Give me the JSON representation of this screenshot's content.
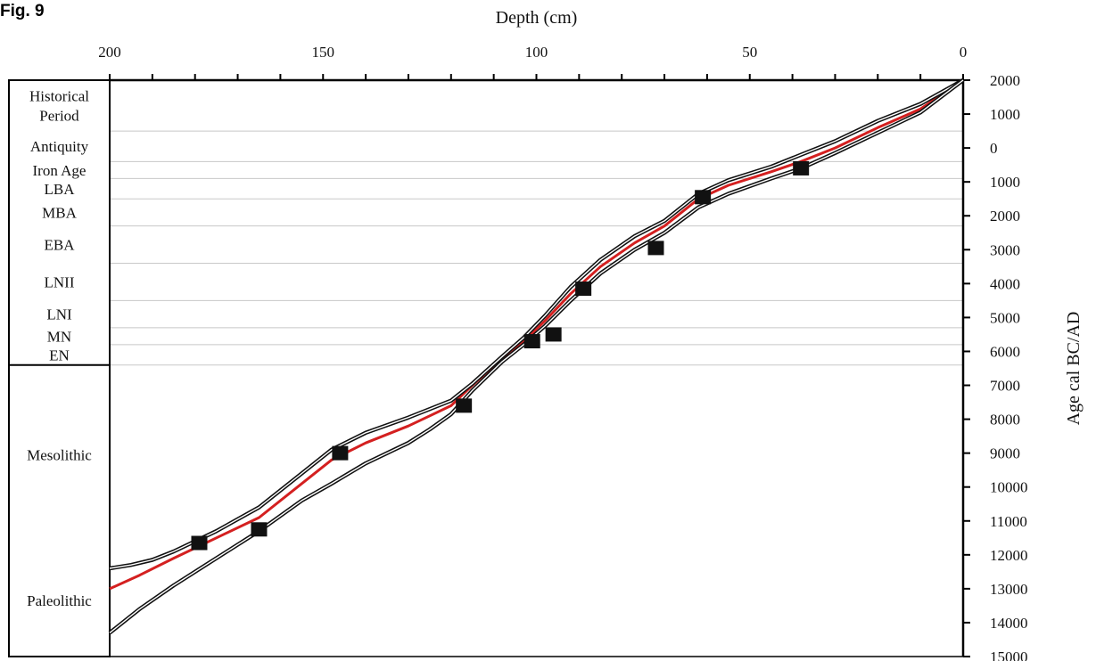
{
  "corner_label": "Fig. 9",
  "chart_data": {
    "type": "line",
    "xlabel": "Depth (cm)",
    "ylabel": "Age cal BC/AD",
    "xlim": [
      200,
      0
    ],
    "ylim": [
      2000,
      -15000
    ],
    "x_ticks": [
      {
        "value": 200,
        "label": "200"
      },
      {
        "value": 150,
        "label": "150"
      },
      {
        "value": 100,
        "label": "100"
      },
      {
        "value": 50,
        "label": "50"
      },
      {
        "value": 0,
        "label": "0"
      }
    ],
    "x_minor_step": 10,
    "y_ticks": [
      {
        "value": 2000,
        "label": "2000"
      },
      {
        "value": 1000,
        "label": "1000"
      },
      {
        "value": 0,
        "label": "0"
      },
      {
        "value": -1000,
        "label": "1000"
      },
      {
        "value": -2000,
        "label": "2000"
      },
      {
        "value": -3000,
        "label": "3000"
      },
      {
        "value": -4000,
        "label": "4000"
      },
      {
        "value": -5000,
        "label": "5000"
      },
      {
        "value": -6000,
        "label": "6000"
      },
      {
        "value": -7000,
        "label": "7000"
      },
      {
        "value": -8000,
        "label": "8000"
      },
      {
        "value": -9000,
        "label": "9000"
      },
      {
        "value": -10000,
        "label": "10000"
      },
      {
        "value": -11000,
        "label": "11000"
      },
      {
        "value": -12000,
        "label": "12000"
      },
      {
        "value": -13000,
        "label": "13000"
      },
      {
        "value": -14000,
        "label": "14000"
      },
      {
        "value": -15000,
        "label": "15000"
      }
    ],
    "periods": [
      {
        "label_lines": [
          "Historical",
          "Period"
        ],
        "from": 2000,
        "to": 500,
        "color": "#111111"
      },
      {
        "label_lines": [
          "Antiquity"
        ],
        "from": 500,
        "to": -400,
        "color": "#111111"
      },
      {
        "label_lines": [
          "Iron Age"
        ],
        "from": -400,
        "to": -900,
        "color": "#111111"
      },
      {
        "label_lines": [
          "LBA"
        ],
        "from": -900,
        "to": -1500,
        "color": "#111111"
      },
      {
        "label_lines": [
          "MBA"
        ],
        "from": -1500,
        "to": -2300,
        "color": "#111111"
      },
      {
        "label_lines": [
          "EBA"
        ],
        "from": -2300,
        "to": -3400,
        "color": "#111111"
      },
      {
        "label_lines": [
          "LNII"
        ],
        "from": -3400,
        "to": -4500,
        "color": "#111111"
      },
      {
        "label_lines": [
          "LNI"
        ],
        "from": -4500,
        "to": -5300,
        "color": "#111111"
      },
      {
        "label_lines": [
          "MN"
        ],
        "from": -5300,
        "to": -5800,
        "color": "#111111"
      },
      {
        "label_lines": [
          "EN"
        ],
        "from": -5800,
        "to": -6400,
        "color": "#111111"
      },
      {
        "label_lines": [
          "Mesolithic"
        ],
        "from": -6400,
        "to": -11700,
        "color": "#111111"
      },
      {
        "label_lines": [
          "Paleolithic"
        ],
        "from": -11700,
        "to": -15000,
        "color": "#111111"
      }
    ],
    "gridlines_at": [
      500,
      -400,
      -900,
      -1500,
      -2300,
      -3400,
      -4500,
      -5300,
      -5800,
      -6400
    ],
    "series": [
      {
        "color": "#d42020",
        "style": "median",
        "points": [
          [
            0,
            2000
          ],
          [
            10,
            1150
          ],
          [
            20,
            600
          ],
          [
            30,
            0
          ],
          [
            38,
            -400
          ],
          [
            45,
            -700
          ],
          [
            55,
            -1100
          ],
          [
            62,
            -1500
          ],
          [
            70,
            -2300
          ],
          [
            77,
            -2800
          ],
          [
            85,
            -3500
          ],
          [
            92,
            -4300
          ],
          [
            98,
            -5100
          ],
          [
            103,
            -5700
          ],
          [
            108,
            -6200
          ],
          [
            115,
            -7000
          ],
          [
            120,
            -7600
          ],
          [
            125,
            -7900
          ],
          [
            130,
            -8200
          ],
          [
            140,
            -8700
          ],
          [
            148,
            -9200
          ],
          [
            155,
            -9900
          ],
          [
            165,
            -10900
          ],
          [
            175,
            -11500
          ],
          [
            185,
            -12100
          ],
          [
            193,
            -12600
          ],
          [
            200,
            -13000
          ]
        ]
      },
      {
        "color": "#111111",
        "style": "envelope-upper",
        "points": [
          [
            0,
            2000
          ],
          [
            10,
            1300
          ],
          [
            20,
            800
          ],
          [
            30,
            200
          ],
          [
            38,
            -200
          ],
          [
            45,
            -550
          ],
          [
            55,
            -950
          ],
          [
            62,
            -1350
          ],
          [
            70,
            -2150
          ],
          [
            77,
            -2600
          ],
          [
            85,
            -3300
          ],
          [
            92,
            -4100
          ],
          [
            98,
            -4950
          ],
          [
            103,
            -5600
          ],
          [
            108,
            -6150
          ],
          [
            115,
            -6950
          ],
          [
            120,
            -7450
          ],
          [
            125,
            -7700
          ],
          [
            130,
            -7950
          ],
          [
            140,
            -8400
          ],
          [
            148,
            -8900
          ],
          [
            155,
            -9600
          ],
          [
            165,
            -10600
          ],
          [
            175,
            -11300
          ],
          [
            185,
            -11900
          ],
          [
            190,
            -12150
          ],
          [
            195,
            -12300
          ],
          [
            200,
            -12400
          ]
        ]
      },
      {
        "color": "#111111",
        "style": "envelope-lower",
        "points": [
          [
            0,
            2000
          ],
          [
            10,
            1050
          ],
          [
            20,
            450
          ],
          [
            30,
            -150
          ],
          [
            38,
            -600
          ],
          [
            45,
            -900
          ],
          [
            55,
            -1350
          ],
          [
            62,
            -1750
          ],
          [
            70,
            -2500
          ],
          [
            77,
            -3000
          ],
          [
            85,
            -3700
          ],
          [
            92,
            -4500
          ],
          [
            98,
            -5250
          ],
          [
            103,
            -5800
          ],
          [
            108,
            -6300
          ],
          [
            115,
            -7150
          ],
          [
            120,
            -7850
          ],
          [
            125,
            -8300
          ],
          [
            130,
            -8700
          ],
          [
            140,
            -9300
          ],
          [
            148,
            -9900
          ],
          [
            155,
            -10400
          ],
          [
            165,
            -11300
          ],
          [
            175,
            -12100
          ],
          [
            185,
            -12900
          ],
          [
            193,
            -13600
          ],
          [
            200,
            -14300
          ]
        ]
      }
    ],
    "markers": [
      {
        "x": 38,
        "y": -600
      },
      {
        "x": 61,
        "y": -1450
      },
      {
        "x": 72,
        "y": -2950
      },
      {
        "x": 89,
        "y": -4150
      },
      {
        "x": 96,
        "y": -5500
      },
      {
        "x": 101,
        "y": -5700
      },
      {
        "x": 117,
        "y": -7600
      },
      {
        "x": 146,
        "y": -9000
      },
      {
        "x": 165,
        "y": -11250
      },
      {
        "x": 179,
        "y": -11650
      }
    ]
  }
}
